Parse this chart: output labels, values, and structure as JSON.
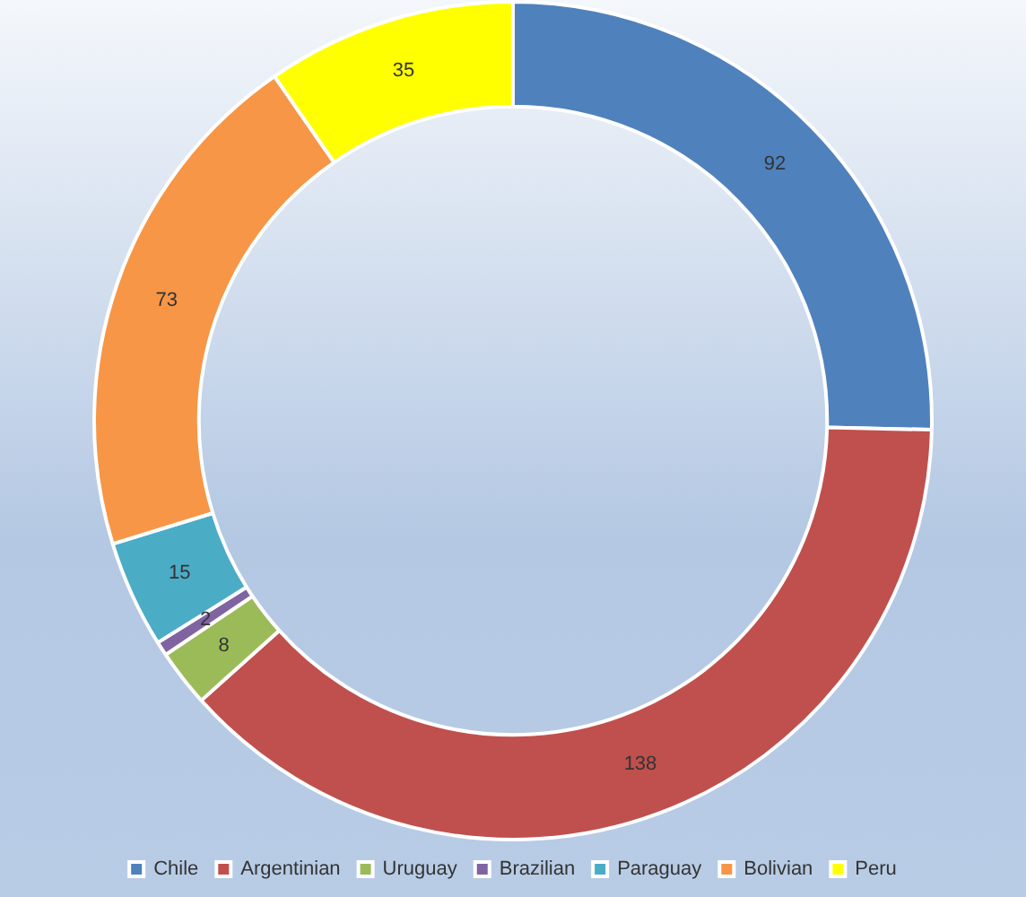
{
  "chart_data": {
    "type": "donut",
    "categories": [
      "Chile",
      "Argentinian",
      "Uruguay",
      "Brazilian",
      "Paraguay",
      "Bolivian",
      "Peru"
    ],
    "values": [
      92,
      138,
      8,
      2,
      15,
      73,
      35
    ],
    "colors": [
      "#4f81bd",
      "#c0504d",
      "#9bbb59",
      "#8064a2",
      "#4bacc6",
      "#f79646",
      "#ffff00"
    ],
    "data_labels": true,
    "legend": "bottom"
  }
}
